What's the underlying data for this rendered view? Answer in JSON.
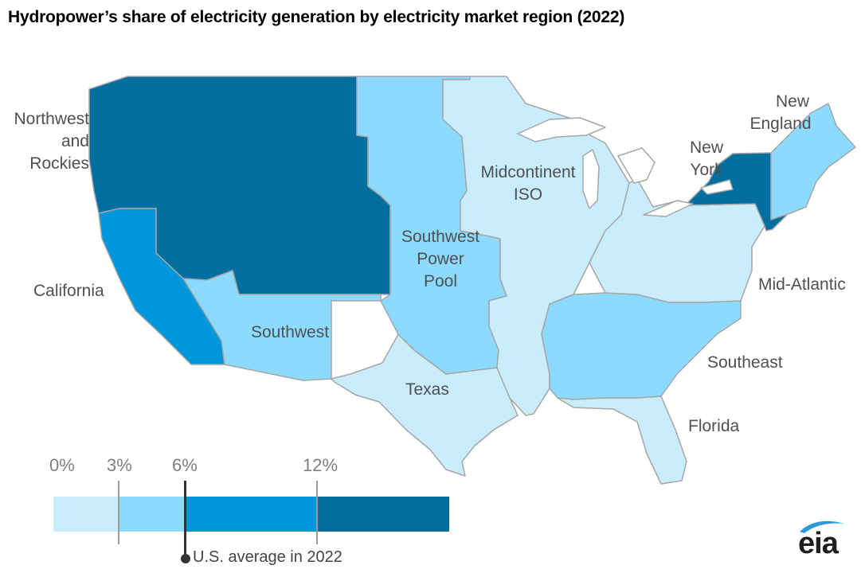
{
  "title": "Hydropower’s share of electricity generation by electricity market region (2022)",
  "colors": {
    "bin_0_3": "#c9edfd",
    "bin_3_6": "#8cdafd",
    "bin_6_12": "#0096db",
    "bin_12_plus": "#006e9f",
    "border": "#a6a6a6"
  },
  "regions": [
    {
      "id": "northwest",
      "label_lines": [
        "Northwest",
        "and",
        "Rockies"
      ],
      "bin": "12%+"
    },
    {
      "id": "california",
      "label_lines": [
        "California"
      ],
      "bin": "6-12%"
    },
    {
      "id": "southwest",
      "label_lines": [
        "Southwest"
      ],
      "bin": "3-6%"
    },
    {
      "id": "spp",
      "label_lines": [
        "Southwest",
        "Power",
        "Pool"
      ],
      "bin": "3-6%"
    },
    {
      "id": "texas",
      "label_lines": [
        "Texas"
      ],
      "bin": "0-3%"
    },
    {
      "id": "miso",
      "label_lines": [
        "Midcontinent",
        "ISO"
      ],
      "bin": "0-3%"
    },
    {
      "id": "southeast",
      "label_lines": [
        "Southeast"
      ],
      "bin": "3-6%"
    },
    {
      "id": "florida",
      "label_lines": [
        "Florida"
      ],
      "bin": "0-3%"
    },
    {
      "id": "midatlantic",
      "label_lines": [
        "Mid-Atlantic"
      ],
      "bin": "0-3%"
    },
    {
      "id": "newyork",
      "label_lines": [
        "New",
        "York"
      ],
      "bin": "12%+"
    },
    {
      "id": "newengland",
      "label_lines": [
        "New",
        "England"
      ],
      "bin": "3-6%"
    }
  ],
  "legend": {
    "ticks": [
      "0%",
      "3%",
      "6%",
      "12%"
    ],
    "average_label": "U.S. average in 2022",
    "average_value_percent": 6.2
  },
  "logo": {
    "text": "eia"
  }
}
